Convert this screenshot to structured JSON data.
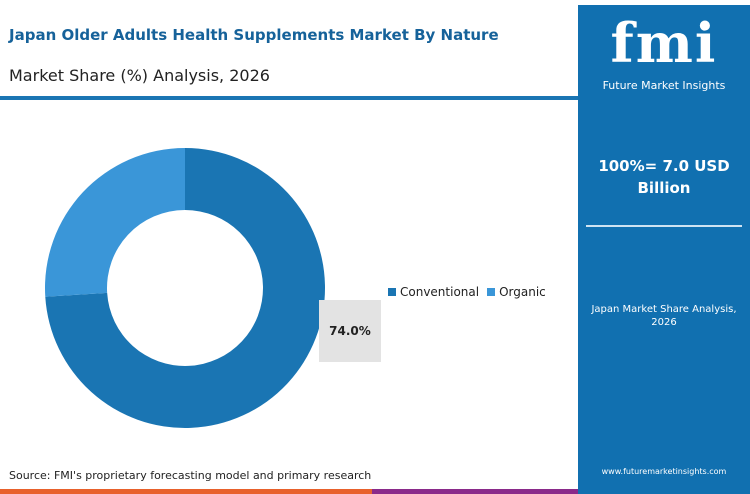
{
  "header": {
    "title": "Japan Older Adults Health Supplements Market By Nature",
    "subtitle": "Market Share (%) Analysis, 2026"
  },
  "panel": {
    "logo": "fmi",
    "logo_text": "Future Market Insights",
    "total": "100%= 7.0 USD Billion",
    "title": "Japan Market Share Analysis, 2026",
    "url": "www.futuremarketinsights.com"
  },
  "source": "Source: FMI's proprietary forecasting model and primary research",
  "chart_data": {
    "type": "pie",
    "donut": true,
    "categories": [
      "Conventional",
      "Organic"
    ],
    "values": [
      74.0,
      26.0
    ],
    "colors": [
      "#1a75b3",
      "#3a96d8"
    ],
    "data_labels": [
      "74.0%"
    ],
    "legend_placement": "right"
  }
}
